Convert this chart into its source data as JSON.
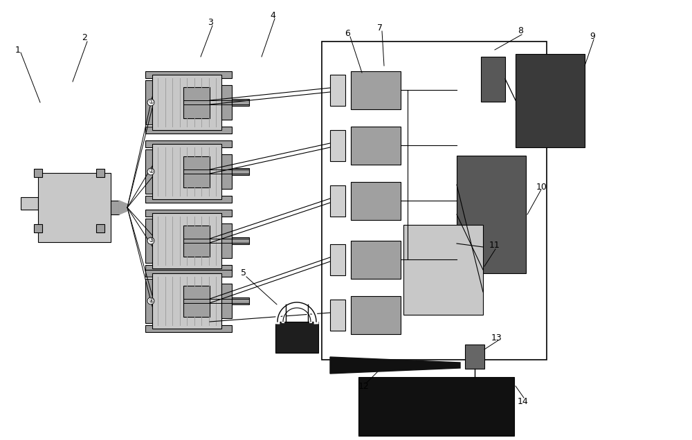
{
  "bg_color": "#ffffff",
  "black": "#000000",
  "light_gray": "#c8c8c8",
  "medium_gray": "#a0a0a0",
  "dark_gray": "#585858",
  "very_dark": "#1e1e1e",
  "comp9_dark": "#3a3a3a",
  "label_color": "#000000"
}
